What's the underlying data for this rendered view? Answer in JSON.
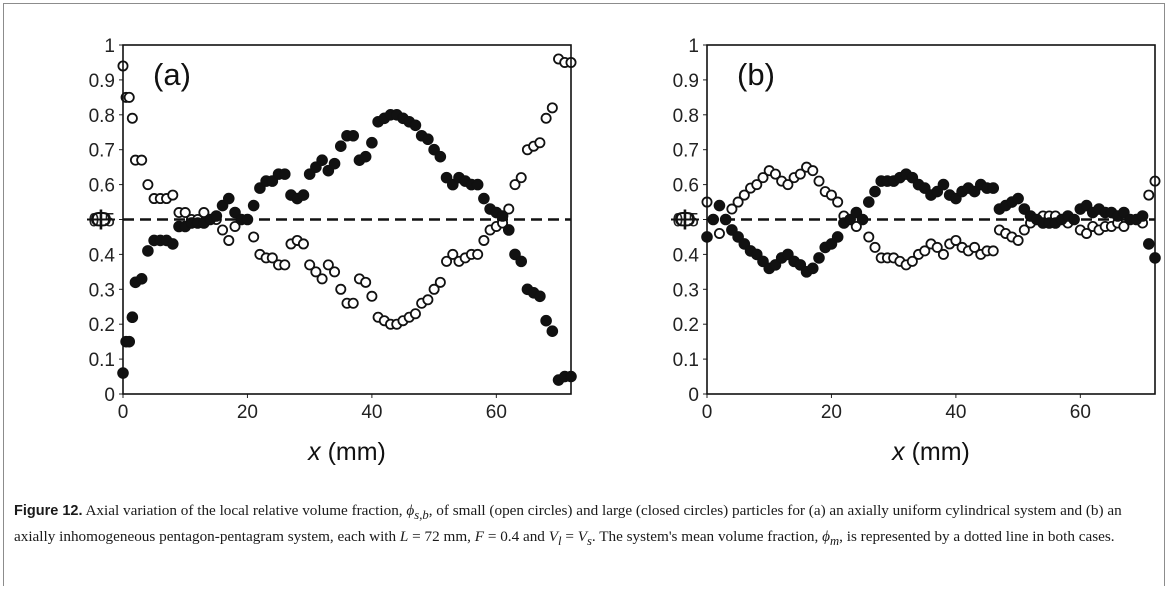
{
  "chart_data": [
    {
      "type": "scatter",
      "panel_label": "(a)",
      "xlabel_var": "x",
      "xlabel_unit": " (mm)",
      "ylabel": "Φ",
      "xlim": [
        0,
        72
      ],
      "ylim": [
        0,
        1
      ],
      "xticks": [
        "0",
        "20",
        "40",
        "60"
      ],
      "yticks": [
        "0",
        "0.1",
        "0.2",
        "0.3",
        "0.4",
        "0.5",
        "0.6",
        "0.7",
        "0.8",
        "0.9",
        "1"
      ],
      "mean_line": 0.5,
      "series": [
        {
          "marker": "open-circle",
          "x": [
            0,
            0.5,
            1,
            1.5,
            2,
            3,
            4,
            5,
            6,
            7,
            8,
            9,
            10,
            11,
            12,
            13,
            14,
            15,
            16,
            17,
            18,
            19,
            20,
            21,
            22,
            23,
            24,
            25,
            26,
            27,
            28,
            29,
            30,
            31,
            32,
            33,
            34,
            35,
            36,
            37,
            38,
            39,
            40,
            41,
            42,
            43,
            44,
            45,
            46,
            47,
            48,
            49,
            50,
            51,
            52,
            53,
            54,
            55,
            56,
            57,
            58,
            59,
            60,
            61,
            62,
            63,
            64,
            65,
            66,
            67,
            68,
            69,
            70,
            71,
            72
          ],
          "y": [
            0.94,
            0.85,
            0.85,
            0.79,
            0.67,
            0.67,
            0.6,
            0.56,
            0.56,
            0.56,
            0.57,
            0.52,
            0.52,
            0.5,
            0.5,
            0.52,
            0.5,
            0.5,
            0.47,
            0.44,
            0.48,
            0.5,
            0.5,
            0.45,
            0.4,
            0.39,
            0.39,
            0.37,
            0.37,
            0.43,
            0.44,
            0.43,
            0.37,
            0.35,
            0.33,
            0.37,
            0.35,
            0.3,
            0.26,
            0.26,
            0.33,
            0.32,
            0.28,
            0.22,
            0.21,
            0.2,
            0.2,
            0.21,
            0.22,
            0.23,
            0.26,
            0.27,
            0.3,
            0.32,
            0.38,
            0.4,
            0.38,
            0.39,
            0.4,
            0.4,
            0.44,
            0.47,
            0.48,
            0.49,
            0.53,
            0.6,
            0.62,
            0.7,
            0.71,
            0.72,
            0.79,
            0.82,
            0.96,
            0.95,
            0.95
          ]
        },
        {
          "marker": "filled-circle",
          "x": [
            0,
            0.5,
            1,
            1.5,
            2,
            3,
            4,
            5,
            6,
            7,
            8,
            9,
            10,
            11,
            12,
            13,
            14,
            15,
            16,
            17,
            18,
            19,
            20,
            21,
            22,
            23,
            24,
            25,
            26,
            27,
            28,
            29,
            30,
            31,
            32,
            33,
            34,
            35,
            36,
            37,
            38,
            39,
            40,
            41,
            42,
            43,
            44,
            45,
            46,
            47,
            48,
            49,
            50,
            51,
            52,
            53,
            54,
            55,
            56,
            57,
            58,
            59,
            60,
            61,
            62,
            63,
            64,
            65,
            66,
            67,
            68,
            69,
            70,
            71,
            72
          ],
          "y": [
            0.06,
            0.15,
            0.15,
            0.22,
            0.32,
            0.33,
            0.41,
            0.44,
            0.44,
            0.44,
            0.43,
            0.48,
            0.48,
            0.49,
            0.49,
            0.49,
            0.5,
            0.51,
            0.54,
            0.56,
            0.52,
            0.5,
            0.5,
            0.54,
            0.59,
            0.61,
            0.61,
            0.63,
            0.63,
            0.57,
            0.56,
            0.57,
            0.63,
            0.65,
            0.67,
            0.64,
            0.66,
            0.71,
            0.74,
            0.74,
            0.67,
            0.68,
            0.72,
            0.78,
            0.79,
            0.8,
            0.8,
            0.79,
            0.78,
            0.77,
            0.74,
            0.73,
            0.7,
            0.68,
            0.62,
            0.6,
            0.62,
            0.61,
            0.6,
            0.6,
            0.56,
            0.53,
            0.52,
            0.51,
            0.47,
            0.4,
            0.38,
            0.3,
            0.29,
            0.28,
            0.21,
            0.18,
            0.04,
            0.05,
            0.05
          ]
        }
      ]
    },
    {
      "type": "scatter",
      "panel_label": "(b)",
      "xlabel_var": "x",
      "xlabel_unit": " (mm)",
      "ylabel": "Φ",
      "xlim": [
        0,
        72
      ],
      "ylim": [
        0,
        1
      ],
      "xticks": [
        "0",
        "20",
        "40",
        "60"
      ],
      "yticks": [
        "0",
        "0.1",
        "0.2",
        "0.3",
        "0.4",
        "0.5",
        "0.6",
        "0.7",
        "0.8",
        "0.9",
        "1"
      ],
      "mean_line": 0.5,
      "series": [
        {
          "marker": "open-circle",
          "x": [
            0,
            1,
            2,
            3,
            4,
            5,
            6,
            7,
            8,
            9,
            10,
            11,
            12,
            13,
            14,
            15,
            16,
            17,
            18,
            19,
            20,
            21,
            22,
            23,
            24,
            25,
            26,
            27,
            28,
            29,
            30,
            31,
            32,
            33,
            34,
            35,
            36,
            37,
            38,
            39,
            40,
            41,
            42,
            43,
            44,
            45,
            46,
            47,
            48,
            49,
            50,
            51,
            52,
            53,
            54,
            55,
            56,
            57,
            58,
            59,
            60,
            61,
            62,
            63,
            64,
            65,
            66,
            67,
            68,
            69,
            70,
            71,
            72
          ],
          "y": [
            0.55,
            0.5,
            0.46,
            0.5,
            0.53,
            0.55,
            0.57,
            0.59,
            0.6,
            0.62,
            0.64,
            0.63,
            0.61,
            0.6,
            0.62,
            0.63,
            0.65,
            0.64,
            0.61,
            0.58,
            0.57,
            0.55,
            0.51,
            0.5,
            0.48,
            0.5,
            0.45,
            0.42,
            0.39,
            0.39,
            0.39,
            0.38,
            0.37,
            0.38,
            0.4,
            0.41,
            0.43,
            0.42,
            0.4,
            0.43,
            0.44,
            0.42,
            0.41,
            0.42,
            0.4,
            0.41,
            0.41,
            0.47,
            0.46,
            0.45,
            0.44,
            0.47,
            0.49,
            0.5,
            0.51,
            0.51,
            0.51,
            0.5,
            0.49,
            0.5,
            0.47,
            0.46,
            0.48,
            0.47,
            0.48,
            0.48,
            0.49,
            0.48,
            0.5,
            0.5,
            0.49,
            0.57,
            0.61
          ]
        },
        {
          "marker": "filled-circle",
          "x": [
            0,
            1,
            2,
            3,
            4,
            5,
            6,
            7,
            8,
            9,
            10,
            11,
            12,
            13,
            14,
            15,
            16,
            17,
            18,
            19,
            20,
            21,
            22,
            23,
            24,
            25,
            26,
            27,
            28,
            29,
            30,
            31,
            32,
            33,
            34,
            35,
            36,
            37,
            38,
            39,
            40,
            41,
            42,
            43,
            44,
            45,
            46,
            47,
            48,
            49,
            50,
            51,
            52,
            53,
            54,
            55,
            56,
            57,
            58,
            59,
            60,
            61,
            62,
            63,
            64,
            65,
            66,
            67,
            68,
            69,
            70,
            71,
            72
          ],
          "y": [
            0.45,
            0.5,
            0.54,
            0.5,
            0.47,
            0.45,
            0.43,
            0.41,
            0.4,
            0.38,
            0.36,
            0.37,
            0.39,
            0.4,
            0.38,
            0.37,
            0.35,
            0.36,
            0.39,
            0.42,
            0.43,
            0.45,
            0.49,
            0.5,
            0.52,
            0.5,
            0.55,
            0.58,
            0.61,
            0.61,
            0.61,
            0.62,
            0.63,
            0.62,
            0.6,
            0.59,
            0.57,
            0.58,
            0.6,
            0.57,
            0.56,
            0.58,
            0.59,
            0.58,
            0.6,
            0.59,
            0.59,
            0.53,
            0.54,
            0.55,
            0.56,
            0.53,
            0.51,
            0.5,
            0.49,
            0.49,
            0.49,
            0.5,
            0.51,
            0.5,
            0.53,
            0.54,
            0.52,
            0.53,
            0.52,
            0.52,
            0.51,
            0.52,
            0.5,
            0.5,
            0.51,
            0.43,
            0.39
          ]
        }
      ]
    }
  ],
  "caption": {
    "label": "Figure 12.",
    "t1": " Axial variation of the local relative volume fraction, ",
    "phi_sl": "ϕ",
    "sub_sl": "s,b",
    "t2": ", of small (open circles) and large (closed circles) particles for (a) an axially uniform cylindrical system and (b) an axially inhomogeneous pentagon-pentagram system, each with ",
    "L_var": "L",
    "L_val": " = 72 mm, ",
    "F_var": "F",
    "F_val": " = 0.4 and ",
    "V1": "V",
    "V1_sub": "l",
    "eq": " = ",
    "V2": "V",
    "V2_sub": "s",
    "t3": ". The system's mean volume fraction, ",
    "phi_m": "ϕ",
    "phi_m_sub": "m",
    "t4": ", is represented by a dotted line in both cases."
  }
}
